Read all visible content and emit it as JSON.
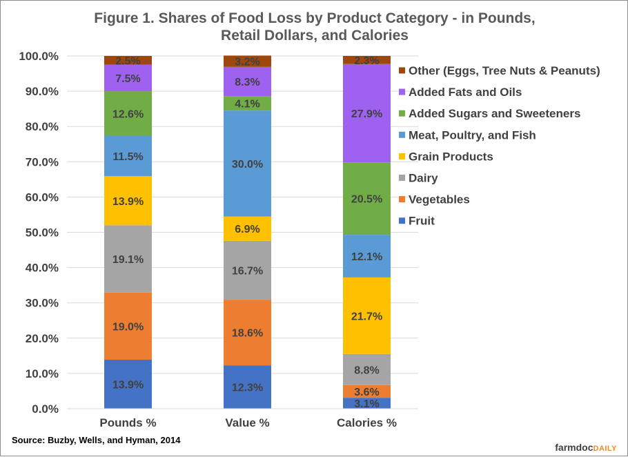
{
  "chart_data": {
    "type": "bar",
    "stacked": true,
    "title_lines": [
      "Figure  1. Shares of Food Loss by Product Category - in Pounds,",
      "Retail Dollars,  and Calories"
    ],
    "categories": [
      "Pounds %",
      "Value %",
      "Calories %"
    ],
    "ylim": [
      0,
      100
    ],
    "yticks": [
      "0.0%",
      "10.0%",
      "20.0%",
      "30.0%",
      "40.0%",
      "50.0%",
      "60.0%",
      "70.0%",
      "80.0%",
      "90.0%",
      "100.0%"
    ],
    "grid": true,
    "legend_position": "right",
    "series": [
      {
        "name": "Fruit",
        "color": "#4472c4",
        "values": [
          13.9,
          12.3,
          3.1
        ],
        "labels": [
          "13.9%",
          "12.3%",
          "3.1%"
        ]
      },
      {
        "name": "Vegetables",
        "color": "#ed7d31",
        "values": [
          19.0,
          18.6,
          3.6
        ],
        "labels": [
          "19.0%",
          "18.6%",
          "3.6%"
        ]
      },
      {
        "name": "Dairy",
        "color": "#a5a5a5",
        "values": [
          19.1,
          16.7,
          8.8
        ],
        "labels": [
          "19.1%",
          "16.7%",
          "8.8%"
        ]
      },
      {
        "name": "Grain Products",
        "color": "#ffc000",
        "values": [
          13.9,
          6.9,
          21.7
        ],
        "labels": [
          "13.9%",
          "6.9%",
          "21.7%"
        ]
      },
      {
        "name": "Meat, Poultry, and Fish",
        "color": "#5b9bd5",
        "values": [
          11.5,
          30.0,
          12.1
        ],
        "labels": [
          "11.5%",
          "30.0%",
          "12.1%"
        ]
      },
      {
        "name": "Added Sugars and Sweeteners",
        "color": "#70ad47",
        "values": [
          12.6,
          4.1,
          20.5
        ],
        "labels": [
          "12.6%",
          "4.1%",
          "20.5%"
        ]
      },
      {
        "name": "Added Fats and Oils",
        "color": "#9e61f0",
        "values": [
          7.5,
          8.3,
          27.9
        ],
        "labels": [
          "7.5%",
          "8.3%",
          "27.9%"
        ]
      },
      {
        "name": "Other (Eggs, Tree Nuts & Peanuts)",
        "color": "#9e480e",
        "values": [
          2.5,
          3.2,
          2.3
        ],
        "labels": [
          "2.5%",
          "3.2%",
          "2.3%"
        ]
      }
    ]
  },
  "footer": {
    "source": "Source: Buzby, Wells, and Hyman,  2014",
    "logo_part1": "farmdoc",
    "logo_part2": "DAILY"
  }
}
